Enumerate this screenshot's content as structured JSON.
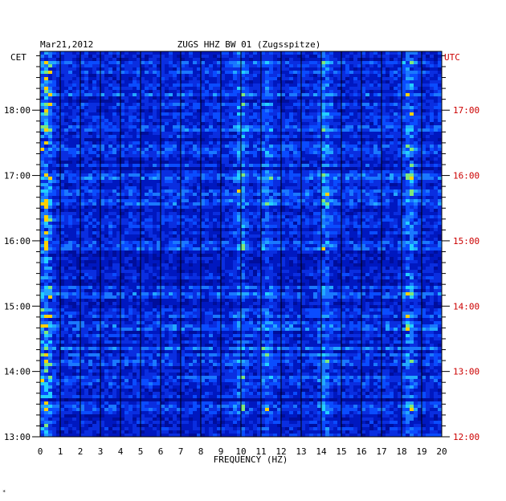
{
  "chart_data": {
    "type": "heatmap",
    "header_left": "Mar21,2012",
    "header_center": "ZUGS HHZ BW 01 (Zugsspitze)",
    "left_timezone": "CET",
    "right_timezone": "UTC",
    "xlabel": "FREQUENCY (HZ)",
    "x_ticks": [
      "0",
      "1",
      "2",
      "3",
      "4",
      "5",
      "6",
      "7",
      "8",
      "9",
      "10",
      "11",
      "12",
      "13",
      "14",
      "15",
      "16",
      "17",
      "18",
      "19",
      "20"
    ],
    "xlim": [
      0,
      20
    ],
    "left_time_labels": [
      "18:00",
      "17:00",
      "16:00",
      "15:00",
      "14:00",
      "13:00"
    ],
    "right_time_labels": [
      "17:00",
      "16:00",
      "15:00",
      "14:00",
      "13:00",
      "12:00"
    ],
    "left_time_values_hours": [
      18,
      17,
      16,
      15,
      14,
      13
    ],
    "time_range_hours_cet": [
      13.0,
      18.9
    ],
    "colors": {
      "low": "#0010a0",
      "mid": "#0a4cff",
      "high": "#22c8ff",
      "peak": "#ffd000",
      "utc_label": "#cc0000"
    },
    "energy_bands_hz": [
      {
        "center": 0.3,
        "strength": 0.9
      },
      {
        "center": 10.0,
        "strength": 0.45
      },
      {
        "center": 11.3,
        "strength": 0.35
      },
      {
        "center": 14.2,
        "strength": 0.5
      },
      {
        "center": 18.4,
        "strength": 0.55
      }
    ]
  }
}
